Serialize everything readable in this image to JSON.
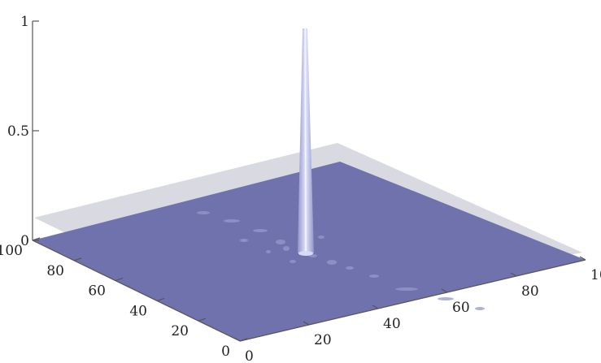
{
  "chart_data": {
    "type": "surface",
    "x_ticks": [
      "0",
      "20",
      "40",
      "60",
      "80",
      "100"
    ],
    "y_ticks": [
      "0",
      "20",
      "40",
      "60",
      "80",
      "100"
    ],
    "z_ticks": [
      "0",
      "0.5",
      "1"
    ],
    "xlim": [
      0,
      100
    ],
    "ylim": [
      0,
      100
    ],
    "zlim": [
      0,
      1
    ],
    "grid": false,
    "legend": "none",
    "peak": {
      "x": 50,
      "y": 50,
      "z": 1.0
    },
    "reference_plane_z": 0.1,
    "colors": {
      "surface": "#6f72ad",
      "plane": "#b9b9c9",
      "peak": "#c4c8f2",
      "axis": "#555555"
    }
  }
}
